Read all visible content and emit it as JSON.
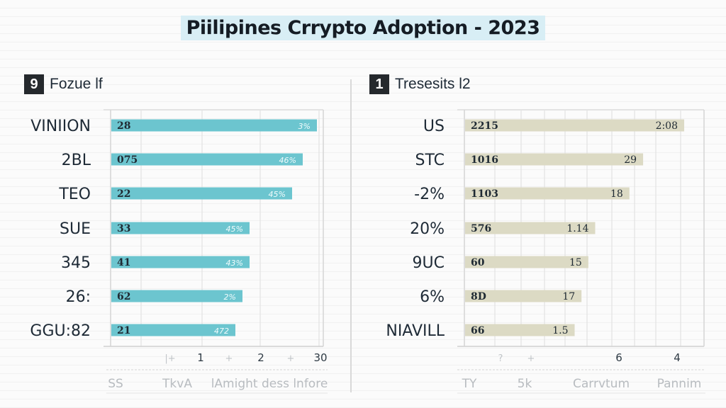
{
  "title": "Piilipines Crrypto Adoption - 2023",
  "colors": {
    "left_bar": "#6cc5cf",
    "right_bar": "#dcdac4",
    "title_bg": "#d8eef5",
    "badge_bg": "#25292d"
  },
  "chart_data": [
    {
      "type": "bar",
      "orientation": "horizontal",
      "badge": "9",
      "title": "Fozue lf",
      "categories": [
        "VINIION",
        "2BL",
        "TEO",
        "SUE",
        "345",
        "26:",
        "GGU:82"
      ],
      "values": [
        2.9,
        2.7,
        2.55,
        1.95,
        1.95,
        1.85,
        1.75
      ],
      "left_labels": [
        "28",
        "075",
        "22",
        "33",
        "41",
        "62",
        "21"
      ],
      "right_labels": [
        "3%",
        "46%",
        "45%",
        "45%",
        "43%",
        "2%",
        "472"
      ],
      "xlim": [
        0,
        3.0
      ],
      "x_ticks": [
        "|+",
        "1",
        "+",
        "2",
        "+",
        "30"
      ],
      "footer_labels": [
        "SS",
        "TkvA",
        "lAmight dess lnfore"
      ],
      "grid": true
    },
    {
      "type": "bar",
      "orientation": "horizontal",
      "badge": "1",
      "title": "Tresesits l2",
      "categories": [
        "US",
        "STC",
        "-2%",
        "20%",
        "9UC",
        "6%",
        "NIAVILL"
      ],
      "values": [
        3.2,
        2.6,
        2.4,
        1.9,
        1.8,
        1.7,
        1.6
      ],
      "left_labels": [
        "2215",
        "1016",
        "1103",
        "576",
        "60",
        "8D",
        "66"
      ],
      "right_labels": [
        "2:08",
        "29",
        "18",
        "1.14",
        "15",
        "17",
        "1.5"
      ],
      "xlim": [
        0,
        3.5
      ],
      "x_ticks": [
        "?",
        "+",
        "",
        "6",
        "4"
      ],
      "footer_labels": [
        "TY",
        "5k",
        "Carrvtum",
        "Pannim"
      ],
      "grid": true
    }
  ]
}
